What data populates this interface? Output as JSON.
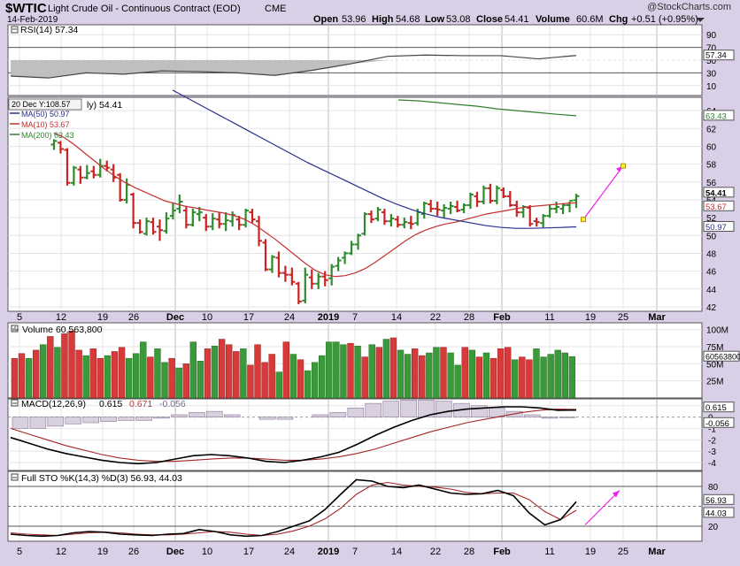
{
  "header": {
    "symbol": "$WTIC",
    "name": "Light Crude Oil - Continuous Contract (EOD)",
    "exchange": "CME",
    "date": "14-Feb-2019",
    "watermark": "@StockCharts.com",
    "open_label": "Open",
    "open": "53.96",
    "high_label": "High",
    "high": "54.68",
    "low_label": "Low",
    "low": "53.08",
    "close_label": "Close",
    "close": "54.41",
    "volume_label": "Volume",
    "volume": "60.6M",
    "chg_label": "Chg",
    "chg": "+0.51 (+0.95%)"
  },
  "colors": {
    "up": "#2e8b2e",
    "down": "#cc2222",
    "ma50": "#2a2f8c",
    "ma10": "#c33131",
    "ma200": "#2f7f2f",
    "annotation": "#ee22ee",
    "annotation_point": "#ffee33",
    "panel_bg": "#ffffff",
    "outer_bg": "#d9cfe6",
    "grid": "#e4e4e4"
  },
  "x_axis": {
    "labels": [
      "5",
      "12",
      "19",
      "26",
      "Dec",
      "10",
      "17",
      "24",
      "2019",
      "7",
      "14",
      "22",
      "28",
      "Feb",
      "11",
      "19",
      "25",
      "Mar"
    ],
    "bold_labels": [
      "Dec",
      "2019",
      "Feb",
      "Mar"
    ]
  },
  "rsi": {
    "legend": "RSI(14) 57.34",
    "ticks": [
      "90",
      "70",
      "50",
      "30",
      "10"
    ],
    "value_label": "57.34"
  },
  "price": {
    "partial_legend": "ly) 54.41",
    "tooltip": "20 Dec Y:108.57",
    "ma_legends": [
      {
        "label": "MA(50) 50.97",
        "key": "ma50"
      },
      {
        "label": "MA(10) 53.67",
        "key": "ma10"
      },
      {
        "label": "MA(200) 63.43",
        "key": "ma200"
      }
    ],
    "ticks": [
      "64",
      "62",
      "60",
      "58",
      "56",
      "54",
      "52",
      "50",
      "48",
      "46",
      "44",
      "42"
    ],
    "value_labels": [
      {
        "text": "63.43",
        "value": 63.43,
        "key": "ma200"
      },
      {
        "text": "54.41",
        "value": 54.41,
        "key": "close"
      },
      {
        "text": "53.67",
        "value": 53.67,
        "key": "ma10"
      },
      {
        "text": "50.97",
        "value": 50.97,
        "key": "ma50"
      }
    ]
  },
  "volume": {
    "legend": "Volume 60,563,800",
    "ticks": [
      "100M",
      "75M",
      "50M",
      "25M"
    ],
    "value_label": "60563800"
  },
  "macd": {
    "legend_name": "MACD(12,26,9)",
    "legend_macd": "0.615",
    "legend_signal": "0.671",
    "legend_hist": "-0.056",
    "ticks": [
      "1",
      "0",
      "-1",
      "-2",
      "-3",
      "-4"
    ],
    "value_labels": [
      "0.615",
      "-0.056"
    ]
  },
  "sto": {
    "legend": "Full STO %K(14,3) %D(3) 56.93, 44.03",
    "ticks": [
      "80",
      "20"
    ],
    "value_labels": [
      "56.93",
      "44.03"
    ]
  },
  "chart_data": [
    {
      "type": "line",
      "title": "RSI(14)",
      "ylim": [
        0,
        100
      ],
      "levels": [
        70,
        30
      ],
      "x": [
        "2018-11-05",
        "2018-11-12",
        "2018-11-19",
        "2018-11-26",
        "2018-12-03",
        "2018-12-10",
        "2018-12-17",
        "2018-12-24",
        "2018-12-31",
        "2019-01-07",
        "2019-01-14",
        "2019-01-22",
        "2019-01-28",
        "2019-02-04",
        "2019-02-11",
        "2019-02-14"
      ],
      "series": [
        {
          "name": "RSI(14)",
          "values": [
            25,
            22,
            30,
            28,
            33,
            32,
            30,
            26,
            34,
            44,
            56,
            58,
            57,
            57,
            52,
            57.34
          ]
        }
      ]
    },
    {
      "type": "candlestick",
      "title": "$WTIC Light Crude Oil - Continuous Contract (EOD)",
      "ylim": [
        41.5,
        65.5
      ],
      "x_start": "2018-11-08",
      "x_end": "2019-02-14",
      "ohlc": [
        [
          60.2,
          60.8,
          59.6,
          60.6
        ],
        [
          60.4,
          60.6,
          59.2,
          59.7
        ],
        [
          59.6,
          59.8,
          55.6,
          55.9
        ],
        [
          55.9,
          57.8,
          55.6,
          57.6
        ],
        [
          57.4,
          57.8,
          55.8,
          56.5
        ],
        [
          56.5,
          57.9,
          56.3,
          57.0
        ],
        [
          57.2,
          57.8,
          56.4,
          56.8
        ],
        [
          56.8,
          58.6,
          56.5,
          57.8
        ],
        [
          57.8,
          58.4,
          57.2,
          57.6
        ],
        [
          57.4,
          58.0,
          56.0,
          56.5
        ],
        [
          56.8,
          57.0,
          53.8,
          54.0
        ],
        [
          54.0,
          56.4,
          53.6,
          55.7
        ],
        [
          54.6,
          54.8,
          50.8,
          51.4
        ],
        [
          51.4,
          51.8,
          50.2,
          50.4
        ],
        [
          50.2,
          52.0,
          50.0,
          51.6
        ],
        [
          51.5,
          52.0,
          50.1,
          50.4
        ],
        [
          51.0,
          51.8,
          49.4,
          50.6
        ],
        [
          50.5,
          52.6,
          50.2,
          51.9
        ],
        [
          52.2,
          53.6,
          51.8,
          52.8
        ],
        [
          53.0,
          54.6,
          52.5,
          53.8
        ],
        [
          52.8,
          53.2,
          50.8,
          51.2
        ],
        [
          51.2,
          53.0,
          51.0,
          52.6
        ],
        [
          52.4,
          53.2,
          51.6,
          52.6
        ],
        [
          52.0,
          52.4,
          50.5,
          51.0
        ],
        [
          51.0,
          52.5,
          50.6,
          51.9
        ],
        [
          51.8,
          52.6,
          50.8,
          51.3
        ],
        [
          51.3,
          52.6,
          50.5,
          51.7
        ],
        [
          51.6,
          52.7,
          51.0,
          52.3
        ],
        [
          51.8,
          52.2,
          50.6,
          51.2
        ],
        [
          51.2,
          53.0,
          50.9,
          52.8
        ],
        [
          52.6,
          53.0,
          51.4,
          51.8
        ],
        [
          51.6,
          52.2,
          48.8,
          49.4
        ],
        [
          49.2,
          49.6,
          46.0,
          46.2
        ],
        [
          46.2,
          47.8,
          45.8,
          47.6
        ],
        [
          47.5,
          48.2,
          45.3,
          45.8
        ],
        [
          45.8,
          46.6,
          44.8,
          45.6
        ],
        [
          45.6,
          46.4,
          44.4,
          44.8
        ],
        [
          44.6,
          44.8,
          42.3,
          42.6
        ],
        [
          42.7,
          46.4,
          42.4,
          45.6
        ],
        [
          45.3,
          46.2,
          44.0,
          44.6
        ],
        [
          44.6,
          45.8,
          44.0,
          45.4
        ],
        [
          45.4,
          46.0,
          44.3,
          45.0
        ],
        [
          45.2,
          46.8,
          44.4,
          46.5
        ],
        [
          46.6,
          47.6,
          46.0,
          47.2
        ],
        [
          47.5,
          48.2,
          46.8,
          48.0
        ],
        [
          48.0,
          49.4,
          47.8,
          49.0
        ],
        [
          49.0,
          50.2,
          48.4,
          50.0
        ],
        [
          50.2,
          52.6,
          50.0,
          52.4
        ],
        [
          52.4,
          52.8,
          51.4,
          51.8
        ],
        [
          51.9,
          53.2,
          51.6,
          52.9
        ],
        [
          52.6,
          53.0,
          51.2,
          51.6
        ],
        [
          51.6,
          52.4,
          51.0,
          51.9
        ],
        [
          51.8,
          52.2,
          50.9,
          51.2
        ],
        [
          51.2,
          52.0,
          50.8,
          51.5
        ],
        [
          51.4,
          52.2,
          50.7,
          51.3
        ],
        [
          51.4,
          53.0,
          51.1,
          52.6
        ],
        [
          52.4,
          53.8,
          51.9,
          53.6
        ],
        [
          53.5,
          54.0,
          52.6,
          53.0
        ],
        [
          53.0,
          53.8,
          52.2,
          52.9
        ],
        [
          52.8,
          53.5,
          52.0,
          53.1
        ],
        [
          53.0,
          53.8,
          52.4,
          53.3
        ],
        [
          53.2,
          53.9,
          52.6,
          52.8
        ],
        [
          52.9,
          53.6,
          52.5,
          53.4
        ],
        [
          53.4,
          54.8,
          53.0,
          54.6
        ],
        [
          54.4,
          54.9,
          53.2,
          53.8
        ],
        [
          53.8,
          55.6,
          53.5,
          55.3
        ],
        [
          55.3,
          55.8,
          53.6,
          53.9
        ],
        [
          53.9,
          55.6,
          53.5,
          55.3
        ],
        [
          55.1,
          55.4,
          54.2,
          54.4
        ],
        [
          54.4,
          55.0,
          53.2,
          53.4
        ],
        [
          53.4,
          53.9,
          52.1,
          52.6
        ],
        [
          52.6,
          53.4,
          52.0,
          53.2
        ],
        [
          53.1,
          53.4,
          51.0,
          51.3
        ],
        [
          51.6,
          52.0,
          51.0,
          51.5
        ],
        [
          51.4,
          52.4,
          50.9,
          52.2
        ],
        [
          52.2,
          53.4,
          52.0,
          53.0
        ],
        [
          53.0,
          53.8,
          52.5,
          53.2
        ],
        [
          53.0,
          53.6,
          52.4,
          53.4
        ],
        [
          53.4,
          53.8,
          52.6,
          53.9
        ],
        [
          53.96,
          54.68,
          53.08,
          54.41
        ]
      ],
      "series": [
        {
          "name": "MA(10)",
          "values": [
            61.5,
            61.0,
            60.2,
            59.3,
            58.4,
            57.5,
            56.7,
            56.0,
            55.4,
            54.9,
            54.4,
            53.9,
            53.6,
            53.3,
            53.1,
            52.9,
            52.7,
            52.5,
            52.2,
            51.8,
            51.2,
            50.4,
            49.6,
            48.7,
            47.8,
            46.9,
            46.1,
            45.6,
            45.4,
            45.5,
            45.8,
            46.3,
            47.0,
            47.8,
            48.6,
            49.4,
            50.1,
            50.6,
            51.0,
            51.3,
            51.5,
            51.8,
            52.1,
            52.4,
            52.6,
            52.8,
            53.0,
            53.2,
            53.3,
            53.4,
            53.5,
            53.6,
            53.67
          ]
        },
        {
          "name": "MA(50)",
          "values": [
            66.3,
            65.4,
            64.5,
            63.6,
            62.7,
            61.8,
            60.9,
            60.0,
            59.1,
            58.2,
            57.4,
            56.6,
            55.8,
            55.0,
            54.2,
            53.5,
            52.9,
            52.4,
            52.0,
            51.7,
            51.4,
            51.1,
            50.9,
            50.8,
            50.8,
            50.85,
            50.9,
            50.97
          ]
        },
        {
          "name": "MA(200)",
          "values": [
            65.2,
            65.1,
            64.9,
            64.7,
            64.5,
            64.2,
            64.0,
            63.8,
            63.6,
            63.43
          ]
        }
      ],
      "annotations": [
        {
          "type": "arrow",
          "from": [
            "2019-02-19",
            51.8
          ],
          "to": [
            "2019-02-25",
            57.8
          ]
        }
      ]
    },
    {
      "type": "bar",
      "title": "Volume",
      "ylim": [
        0,
        110000000
      ],
      "values_millions": [
        58,
        65,
        58,
        70,
        78,
        90,
        74,
        94,
        98,
        70,
        62,
        72,
        58,
        62,
        68,
        74,
        58,
        65,
        82,
        60,
        72,
        52,
        58,
        44,
        50,
        82,
        54,
        72,
        76,
        86,
        78,
        68,
        72,
        48,
        78,
        52,
        64,
        38,
        82,
        64,
        56,
        40,
        52,
        62,
        82,
        82,
        78,
        80,
        76,
        60,
        78,
        74,
        86,
        88,
        70,
        64,
        72,
        62,
        66,
        74,
        74,
        66,
        48,
        74,
        70,
        60,
        66,
        58,
        72,
        74,
        56,
        60,
        56,
        72,
        60,
        64,
        70,
        66,
        60.56
      ],
      "up_down": "uuuuuuuddd..."
    },
    {
      "type": "line",
      "title": "MACD(12,26,9)",
      "ylim": [
        -4.7,
        1.6
      ],
      "series": [
        {
          "name": "MACD",
          "values": [
            -1.8,
            -2.3,
            -2.8,
            -3.2,
            -3.5,
            -3.8,
            -4.0,
            -4.1,
            -4.0,
            -3.7,
            -3.4,
            -3.3,
            -3.4,
            -3.6,
            -3.9,
            -4.0,
            -3.8,
            -3.5,
            -3.1,
            -2.4,
            -1.6,
            -0.9,
            -0.3,
            0.2,
            0.5,
            0.7,
            0.8,
            0.9,
            0.9,
            0.8,
            0.6,
            0.615
          ]
        },
        {
          "name": "Signal",
          "values": [
            -1.0,
            -1.5,
            -2.0,
            -2.5,
            -2.9,
            -3.3,
            -3.6,
            -3.8,
            -3.9,
            -3.9,
            -3.8,
            -3.7,
            -3.6,
            -3.6,
            -3.7,
            -3.8,
            -3.8,
            -3.7,
            -3.5,
            -3.2,
            -2.8,
            -2.3,
            -1.8,
            -1.3,
            -0.9,
            -0.5,
            -0.2,
            0.1,
            0.4,
            0.6,
            0.7,
            0.671
          ]
        },
        {
          "name": "Histogram",
          "values": [
            -1.0,
            -1.0,
            -0.8,
            -0.6,
            -0.5,
            -0.4,
            -0.3,
            -0.3,
            -0.1,
            0.2,
            0.4,
            0.5,
            0.2,
            0.0,
            -0.2,
            -0.2,
            0.0,
            0.2,
            0.4,
            0.8,
            1.2,
            1.4,
            1.5,
            1.5,
            1.4,
            1.2,
            1.0,
            0.8,
            0.5,
            0.2,
            -0.1,
            -0.056
          ]
        }
      ]
    },
    {
      "type": "line",
      "title": "Full STO %K(14,3) %D(3)",
      "ylim": [
        0,
        100
      ],
      "levels": [
        80,
        20
      ],
      "series": [
        {
          "name": "%K",
          "values": [
            8,
            6,
            5,
            6,
            10,
            12,
            11,
            8,
            7,
            6,
            8,
            9,
            15,
            12,
            7,
            5,
            6,
            12,
            20,
            28,
            45,
            68,
            90,
            88,
            80,
            78,
            82,
            76,
            70,
            68,
            69,
            74,
            66,
            40,
            22,
            30,
            56.93
          ]
        },
        {
          "name": "%D",
          "values": [
            10,
            8,
            7,
            6,
            8,
            10,
            11,
            10,
            8,
            7,
            7,
            8,
            10,
            12,
            11,
            8,
            6,
            8,
            13,
            20,
            31,
            47,
            68,
            82,
            86,
            82,
            80,
            79,
            76,
            71,
            69,
            70,
            70,
            60,
            42,
            30,
            44.03
          ]
        }
      ]
    }
  ]
}
